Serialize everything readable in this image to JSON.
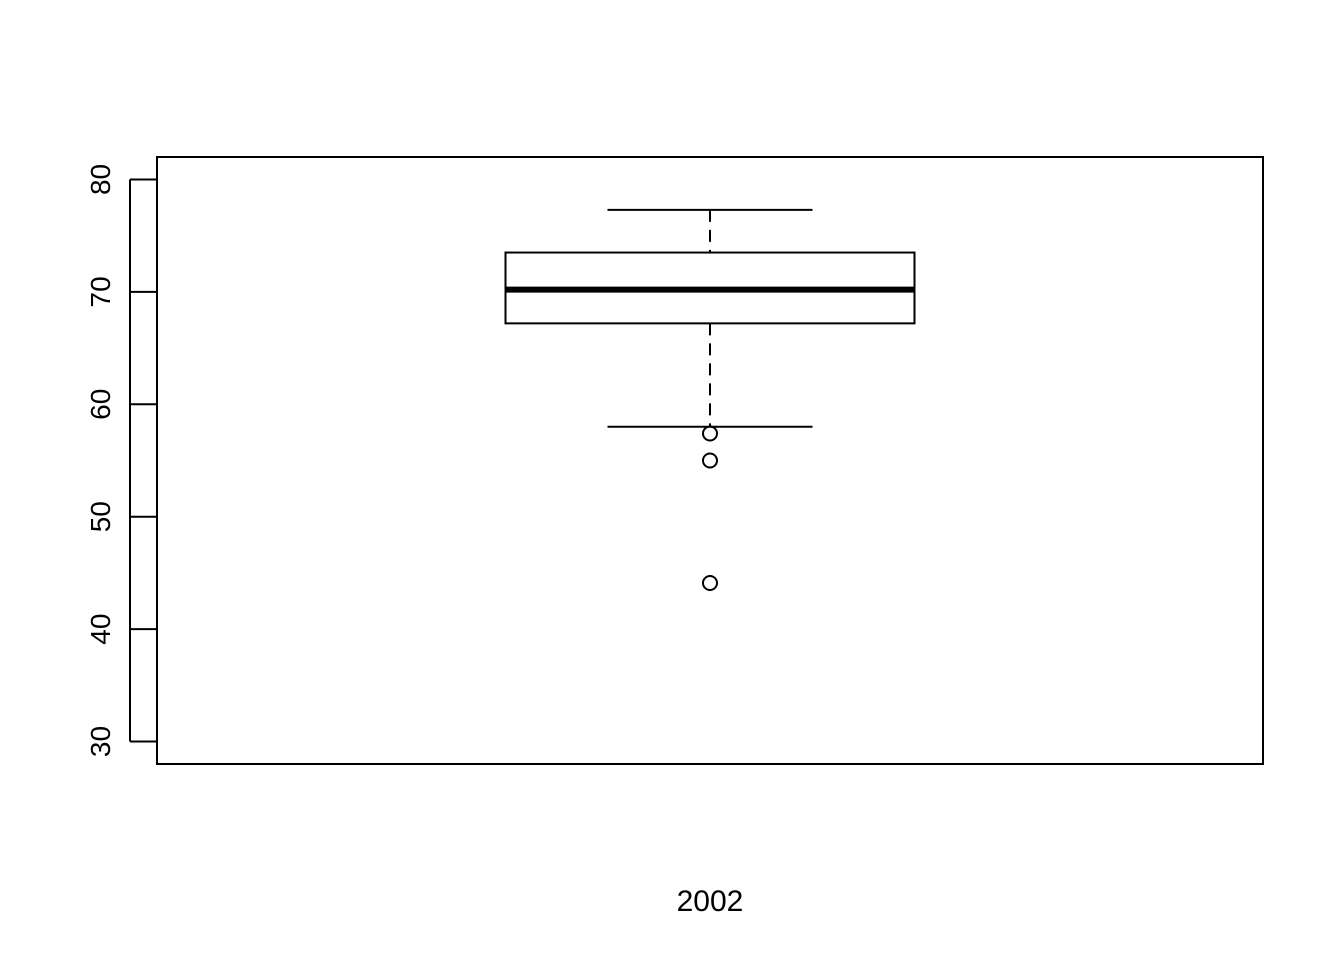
{
  "chart_data": {
    "type": "box",
    "title": "",
    "xlabel": "",
    "ylabel": "",
    "ylim": [
      28,
      82
    ],
    "y_ticks": [
      30,
      40,
      50,
      60,
      70,
      80
    ],
    "y_tick_labels": [
      "30",
      "40",
      "50",
      "60",
      "70",
      "80"
    ],
    "categories": [
      "2002"
    ],
    "boxes": [
      {
        "label": "2002",
        "whisker_low": 58.0,
        "q1": 67.2,
        "median": 70.2,
        "q3": 73.5,
        "whisker_high": 77.3,
        "outliers": [
          57.4,
          55.0,
          44.1
        ]
      }
    ],
    "grid": false,
    "legend": "none"
  }
}
